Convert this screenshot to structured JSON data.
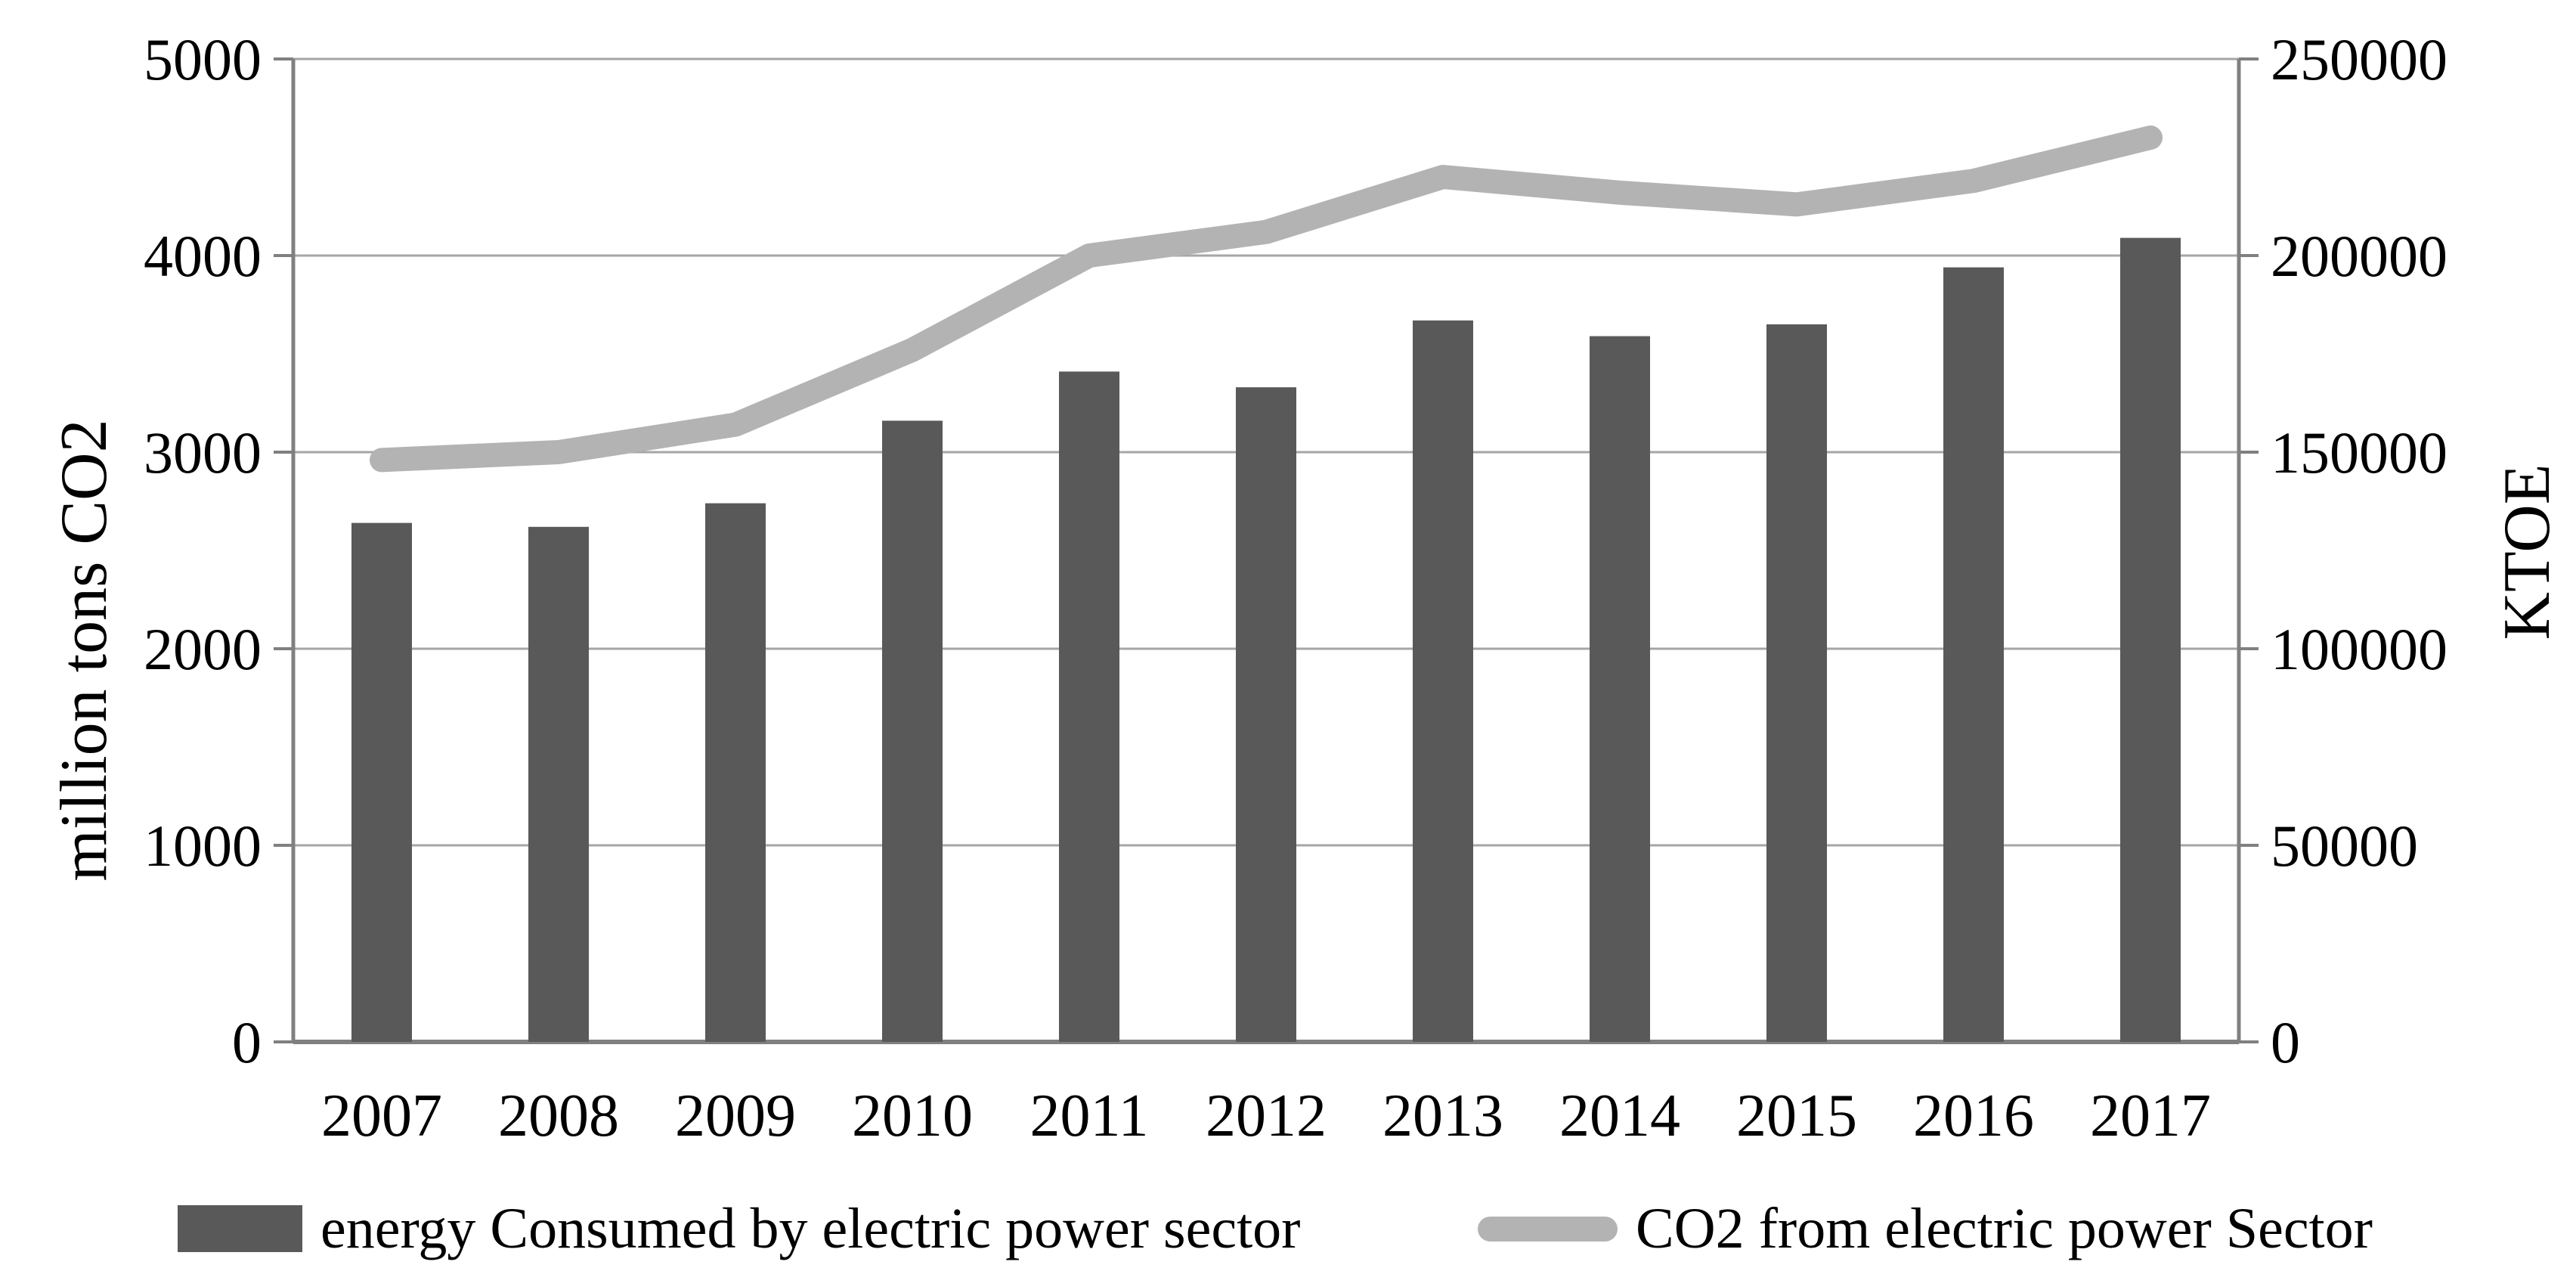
{
  "figure": {
    "background": "#ffffff",
    "text_color": "#000000"
  },
  "chart_data": {
    "type": "combo-bar-line",
    "categories": [
      "2007",
      "2008",
      "2009",
      "2010",
      "2011",
      "2012",
      "2013",
      "2014",
      "2015",
      "2016",
      "2017"
    ],
    "series": [
      {
        "name": "energy Consumed by electric power sector",
        "type": "bar",
        "axis": "left",
        "color": "#595959",
        "values": [
          2640,
          2620,
          2740,
          3160,
          3410,
          3330,
          3670,
          3590,
          3650,
          3940,
          4090
        ]
      },
      {
        "name": "CO2 from electric power Sector",
        "type": "line",
        "axis": "right",
        "color": "#b3b3b3",
        "values": [
          148000,
          150000,
          157000,
          176000,
          200000,
          206000,
          220000,
          216000,
          213000,
          219000,
          230000
        ]
      }
    ],
    "left_axis": {
      "title": "million tons CO2",
      "min": 0,
      "max": 5000,
      "step": 1000,
      "tick_labels": [
        "0",
        "1000",
        "2000",
        "3000",
        "4000",
        "5000"
      ]
    },
    "right_axis": {
      "title": "KTOE",
      "min": 0,
      "max": 250000,
      "step": 50000,
      "tick_labels": [
        "0",
        "50000",
        "100000",
        "150000",
        "200000",
        "250000"
      ]
    },
    "grid": true,
    "legend_position": "bottom",
    "gridline_color": "#a6a6a6",
    "axis_line_color": "#808080"
  }
}
